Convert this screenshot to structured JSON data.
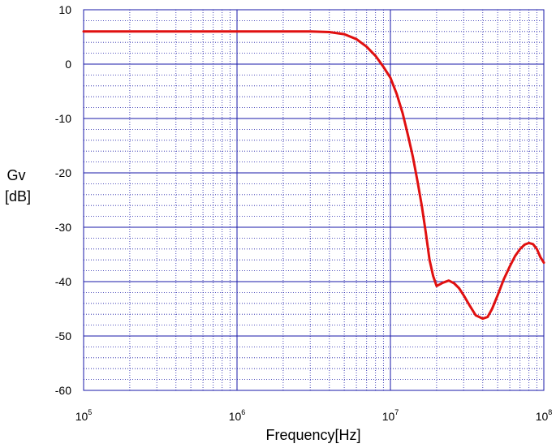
{
  "chart_data": {
    "type": "line",
    "title": "",
    "xlabel": "Frequency[Hz]",
    "ylabel_lines": [
      "Gv",
      "[dB]"
    ],
    "x_scale": "log",
    "xlim": [
      100000,
      100000000
    ],
    "ylim": [
      -60,
      10
    ],
    "x_ticks": [
      {
        "value": 100000,
        "base": "10",
        "exp": "5"
      },
      {
        "value": 1000000,
        "base": "10",
        "exp": "6"
      },
      {
        "value": 10000000,
        "base": "10",
        "exp": "7"
      },
      {
        "value": 100000000,
        "base": "10",
        "exp": "8"
      }
    ],
    "y_ticks": [
      10,
      0,
      -10,
      -20,
      -30,
      -40,
      -50,
      -60
    ],
    "grid": true,
    "grid_color": "#1a1aa8",
    "line_color": "#e01010",
    "series": [
      {
        "x": [
          100000,
          1000000,
          3000000,
          4000000,
          5000000,
          6000000,
          7000000,
          8000000,
          9000000,
          10000000,
          11000000,
          12000000,
          13000000,
          14000000,
          15000000,
          16000000,
          17000000,
          18000000,
          19000000,
          20000000,
          22000000,
          24000000,
          26000000,
          28000000,
          30000000,
          33000000,
          36000000,
          40000000,
          43000000,
          46000000,
          50000000,
          55000000,
          60000000,
          65000000,
          70000000,
          75000000,
          80000000,
          85000000,
          90000000,
          95000000,
          100000000
        ],
        "y": [
          6,
          6,
          6,
          5.9,
          5.5,
          4.6,
          3.2,
          1.5,
          -0.5,
          -2.5,
          -5.5,
          -9,
          -13,
          -17,
          -21.5,
          -26,
          -31,
          -36,
          -39,
          -40.8,
          -40.2,
          -39.8,
          -40.3,
          -41.2,
          -42.5,
          -44.5,
          -46.2,
          -46.8,
          -46.5,
          -45,
          -42.5,
          -39.5,
          -37.2,
          -35.3,
          -34,
          -33.2,
          -32.9,
          -33.1,
          -34,
          -35.5,
          -36.5
        ]
      }
    ]
  }
}
